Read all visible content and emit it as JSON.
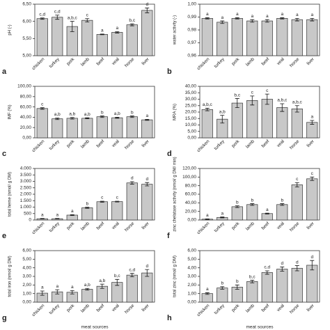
{
  "chart_data": [
    {
      "type": "bar",
      "panel": "a",
      "ylabel": "pH (-)",
      "categories": [
        "chicken",
        "turkey",
        "pork",
        "lamb",
        "beef",
        "veal",
        "horse",
        "liver"
      ],
      "values": [
        6.08,
        6.12,
        5.85,
        6.03,
        5.62,
        5.68,
        5.9,
        6.32
      ],
      "errors": [
        0.02,
        0.06,
        0.15,
        0.05,
        0.01,
        0.02,
        0.03,
        0.07
      ],
      "annotations": [
        "c,d",
        "c,d",
        "a,b,c",
        "c",
        "a",
        "a",
        "b,c",
        "d"
      ],
      "ylim": [
        5,
        6.5
      ],
      "yticks": [
        {
          "value": 5,
          "label": "5,00"
        },
        {
          "value": 5.5,
          "label": "5,50"
        },
        {
          "value": 6,
          "label": "6,00"
        },
        {
          "value": 6.5,
          "label": "6,50"
        }
      ],
      "color": "#c8c8c8"
    },
    {
      "type": "bar",
      "panel": "b",
      "ylabel": "water activity (-)",
      "categories": [
        "chicken",
        "turkey",
        "pork",
        "lamb",
        "beef",
        "veal",
        "horse",
        "liver"
      ],
      "values": [
        0.989,
        0.986,
        0.989,
        0.987,
        0.987,
        0.989,
        0.988,
        0.988
      ],
      "errors": [
        0.0005,
        0.001,
        0.0005,
        0.001,
        0.001,
        0.0005,
        0.001,
        0.001
      ],
      "annotations": [
        "a",
        "a",
        "a",
        "a",
        "a",
        "a",
        "a",
        "a"
      ],
      "ylim": [
        0.96,
        1
      ],
      "yticks": [
        {
          "value": 0.96,
          "label": "0,96"
        },
        {
          "value": 0.97,
          "label": "0,97"
        },
        {
          "value": 0.98,
          "label": "0,98"
        },
        {
          "value": 0.99,
          "label": "0,99"
        },
        {
          "value": 1,
          "label": "1,00"
        }
      ],
      "color": "#c8c8c8"
    },
    {
      "type": "bar",
      "panel": "c",
      "ylabel": "IMF (%)",
      "categories": [
        "chicken",
        "turkey",
        "pork",
        "lamb",
        "beef",
        "veal",
        "horse",
        "liver"
      ],
      "values": [
        57,
        37,
        38,
        38,
        41,
        39,
        41,
        35
      ],
      "errors": [
        1.5,
        1.5,
        1.5,
        1,
        1.5,
        1,
        1.5,
        1
      ],
      "annotations": [
        "c",
        "a,b",
        "a,b",
        "a,b",
        "b",
        "a,b",
        "b",
        "a"
      ],
      "ylim": [
        0,
        100
      ],
      "yticks": [
        {
          "value": 0,
          "label": "0,00"
        },
        {
          "value": 20,
          "label": "20,00"
        },
        {
          "value": 40,
          "label": "40,00"
        },
        {
          "value": 60,
          "label": "60,00"
        },
        {
          "value": 80,
          "label": "80,00"
        },
        {
          "value": 100,
          "label": "100,00"
        }
      ],
      "color": "#c8c8c8"
    },
    {
      "type": "bar",
      "panel": "d",
      "ylabel": "MRA (%)",
      "categories": [
        "chicken",
        "turkey",
        "pork",
        "lamb",
        "beef",
        "veal",
        "horse",
        "liver"
      ],
      "values": [
        22,
        14.5,
        27,
        29,
        30,
        23.5,
        22.5,
        12
      ],
      "errors": [
        1,
        3,
        3.5,
        3.5,
        4,
        3,
        2.5,
        1.5
      ],
      "annotations": [
        "a,b,c",
        "a,b",
        "b,c",
        "c",
        "c",
        "a,b,c",
        "a,b,c",
        "a"
      ],
      "ylim": [
        0,
        40
      ],
      "yticks": [
        {
          "value": 0,
          "label": "0,00"
        },
        {
          "value": 5,
          "label": "5,00"
        },
        {
          "value": 10,
          "label": "10,00"
        },
        {
          "value": 15,
          "label": "15,00"
        },
        {
          "value": 20,
          "label": "20,00"
        },
        {
          "value": 25,
          "label": "25,00"
        },
        {
          "value": 30,
          "label": "30,00"
        },
        {
          "value": 35,
          "label": "35,00"
        },
        {
          "value": 40,
          "label": "40,00"
        }
      ],
      "color": "#c8c8c8"
    },
    {
      "type": "bar",
      "panel": "e",
      "ylabel": "total heme (nmol/ g DM)",
      "categories": [
        "chicken",
        "turkey",
        "pork",
        "lamb",
        "beef",
        "veal",
        "horse",
        "liver"
      ],
      "values": [
        100,
        100,
        380,
        950,
        1420,
        1430,
        2880,
        2780
      ],
      "errors": [
        20,
        20,
        30,
        40,
        40,
        30,
        100,
        130
      ],
      "annotations": [
        "a",
        "a",
        "a",
        "b",
        "c",
        "c",
        "d",
        "d"
      ],
      "ylim": [
        0,
        4000
      ],
      "yticks": [
        0,
        500,
        {
          "value": 1000,
          "label": "1.000"
        },
        {
          "value": 1500,
          "label": "1.500"
        },
        {
          "value": 2000,
          "label": "2.000"
        },
        {
          "value": 2500,
          "label": "2.500"
        },
        {
          "value": 3000,
          "label": "3.000"
        },
        {
          "value": 3500,
          "label": "3.500"
        },
        {
          "value": 4000,
          "label": "4.000"
        }
      ],
      "color": "#c8c8c8"
    },
    {
      "type": "bar",
      "panel": "f",
      "ylabel": "zinc chelatase activity (nmol/ g DM/ min)",
      "categories": [
        "chicken",
        "turkey",
        "pork",
        "lamb",
        "beef",
        "veal",
        "horse",
        "liver"
      ],
      "values": [
        2,
        6,
        31,
        36,
        15,
        36,
        82,
        96
      ],
      "errors": [
        0.5,
        1,
        2,
        2,
        1,
        2,
        5,
        4
      ],
      "annotations": [
        "a",
        "a",
        "b",
        "b",
        "a",
        "b",
        "c",
        "c"
      ],
      "ylim": [
        0,
        120
      ],
      "yticks": [
        {
          "value": 0,
          "label": "0,00"
        },
        {
          "value": 20,
          "label": "20,00"
        },
        {
          "value": 40,
          "label": "40,00"
        },
        {
          "value": 60,
          "label": "60,00"
        },
        {
          "value": 80,
          "label": "80,00"
        },
        {
          "value": 100,
          "label": "100,00"
        },
        {
          "value": 120,
          "label": "120,00"
        }
      ],
      "color": "#c8c8c8"
    },
    {
      "type": "bar",
      "panel": "g",
      "ylabel": "total iron (nmol/ g DM)",
      "xlabel": "meat sources",
      "categories": [
        "chicken",
        "turkey",
        "pork",
        "lamb",
        "beef",
        "veal",
        "horse",
        "liver"
      ],
      "values": [
        1.05,
        1.2,
        1.15,
        1.5,
        1.85,
        2.3,
        3.15,
        3.4
      ],
      "errors": [
        0.25,
        0.25,
        0.2,
        0.1,
        0.25,
        0.35,
        0.2,
        0.4
      ],
      "annotations": [
        "a",
        "a",
        "a",
        "a,b",
        "a,b",
        "b,c",
        "c,d",
        "d"
      ],
      "ylim": [
        0,
        6
      ],
      "yticks": [
        {
          "value": 0,
          "label": "0,00"
        },
        {
          "value": 1,
          "label": "1,00"
        },
        {
          "value": 2,
          "label": "2,00"
        },
        {
          "value": 3,
          "label": "3,00"
        },
        {
          "value": 4,
          "label": "4,00"
        },
        {
          "value": 5,
          "label": "5,00"
        },
        {
          "value": 6,
          "label": "6,00"
        }
      ],
      "color": "#c8c8c8"
    },
    {
      "type": "bar",
      "panel": "h",
      "ylabel": "total zinc (nmol/ g DM)",
      "xlabel": "meat sources",
      "categories": [
        "chicken",
        "turkey",
        "pork",
        "lamb",
        "beef",
        "veal",
        "horse",
        "liver"
      ],
      "values": [
        1,
        1.65,
        1.75,
        2.4,
        3.45,
        3.85,
        3.95,
        4.3
      ],
      "errors": [
        0.1,
        0.15,
        0.25,
        0.15,
        0.2,
        0.25,
        0.3,
        0.55
      ],
      "annotations": [
        "a",
        "b",
        "b",
        "b,c",
        "c,d",
        "d",
        "d",
        "d"
      ],
      "ylim": [
        0,
        6
      ],
      "yticks": [
        {
          "value": 0,
          "label": "0,00"
        },
        {
          "value": 1,
          "label": "1,00"
        },
        {
          "value": 2,
          "label": "2,00"
        },
        {
          "value": 3,
          "label": "3,00"
        },
        {
          "value": 4,
          "label": "4,00"
        },
        {
          "value": 5,
          "label": "5,00"
        },
        {
          "value": 6,
          "label": "6,00"
        }
      ],
      "color": "#c8c8c8"
    }
  ]
}
